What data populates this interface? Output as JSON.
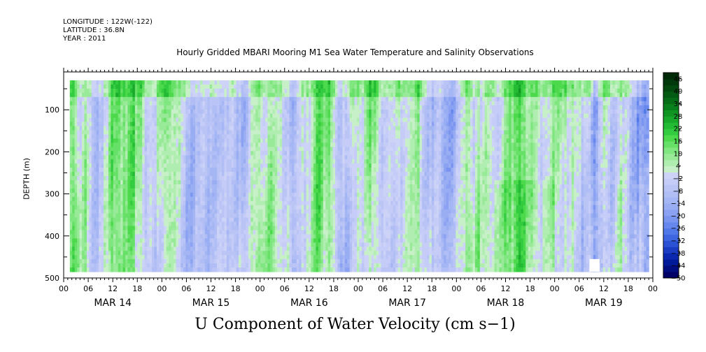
{
  "meta": {
    "longitude": "LONGITUDE : 122W(-122)",
    "latitude": "LATITUDE : 36.8N",
    "year": "YEAR : 2011"
  },
  "chart_data": {
    "type": "heatmap",
    "title": "Hourly Gridded MBARI Mooring M1 Sea Water Temperature and Salinity Observations",
    "bottom_title": "U Component of Water Velocity (cm s−1)",
    "xlabel": "",
    "ylabel": "DEPTH (m)",
    "x_hour_ticks": [
      "00",
      "06",
      "12",
      "18",
      "00",
      "06",
      "12",
      "18",
      "00",
      "06",
      "12",
      "18",
      "00",
      "06",
      "12",
      "18",
      "00",
      "06",
      "12",
      "18",
      "00",
      "06",
      "12",
      "18",
      "00"
    ],
    "x_day_labels": [
      "MAR 14",
      "MAR 15",
      "MAR 16",
      "MAR 17",
      "MAR 18",
      "MAR 19"
    ],
    "x_range_hours": [
      0,
      144
    ],
    "data_start_hour": 1.5,
    "data_end_hour": 143,
    "y_ticks": [
      100,
      200,
      300,
      400,
      500
    ],
    "y_range": [
      500,
      10
    ],
    "depth_data_range": [
      30,
      485
    ],
    "colorbar_labels": [
      "46",
      "40",
      "34",
      "28",
      "22",
      "16",
      "10",
      "4",
      "-2",
      "-8",
      "-14",
      "-20",
      "-26",
      "-32",
      "-38",
      "-44",
      "-50"
    ],
    "colorbar_levels": [
      -50,
      -47,
      -44,
      -41,
      -38,
      -35,
      -32,
      -29,
      -26,
      -23,
      -20,
      -17,
      -14,
      -11,
      -8,
      -5,
      -2,
      1,
      4,
      7,
      10,
      13,
      16,
      19,
      22,
      25,
      28,
      31,
      34,
      37,
      40,
      43,
      46,
      49
    ],
    "colorbar_colors": [
      "#000066",
      "#000d80",
      "#001a99",
      "#0a28b0",
      "#1a3dc4",
      "#2b52d4",
      "#3d66e0",
      "#5078e8",
      "#6687ee",
      "#7a95f0",
      "#8ba2f2",
      "#99adf3",
      "#a5b6f4",
      "#b0bef5",
      "#bac5f6",
      "#c4ccf7",
      "#ccd3f7",
      "#c8f0c8",
      "#b0edb0",
      "#98ea98",
      "#80e680",
      "#66e066",
      "#4cd94c",
      "#33cc40",
      "#22bb33",
      "#18a82a",
      "#109422",
      "#0a801c",
      "#066c16",
      "#035a12",
      "#02480e",
      "#01380b",
      "#002a08"
    ]
  }
}
